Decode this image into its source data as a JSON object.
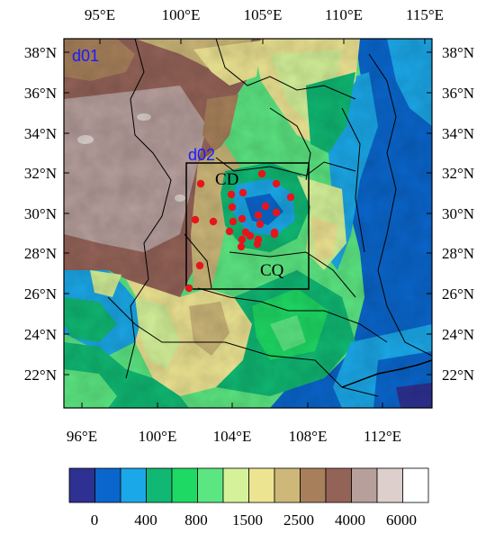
{
  "map": {
    "top_lon_labels": [
      "95°E",
      "100°E",
      "105°E",
      "110°E",
      "115°E"
    ],
    "bottom_lon_labels": [
      "96°E",
      "100°E",
      "104°E",
      "108°E",
      "112°E"
    ],
    "left_lat_labels": [
      "38°N",
      "36°N",
      "34°N",
      "32°N",
      "30°N",
      "28°N",
      "26°N",
      "24°N",
      "22°N"
    ],
    "right_lat_labels": [
      "38°N",
      "36°N",
      "34°N",
      "32°N",
      "30°N",
      "28°N",
      "26°N",
      "24°N",
      "22°N"
    ],
    "domain_outer_label": "d01",
    "domain_inner_label": "d02",
    "city_labels": [
      "CD",
      "CQ"
    ],
    "station_count": 26
  },
  "colorbar": {
    "colors": [
      "#2e3192",
      "#0a66cc",
      "#1ba8e8",
      "#10b873",
      "#1ed964",
      "#5ce682",
      "#d5f29a",
      "#ede492",
      "#cdb879",
      "#a7805b",
      "#946358",
      "#b79f9c",
      "#ddd0cc",
      "#ffffff"
    ],
    "labels": [
      "0",
      "400",
      "800",
      "1500",
      "2500",
      "4000",
      "6000"
    ]
  },
  "colors": {
    "station": "#e8141c",
    "frame": "#000000",
    "domain_label": "#1a1aff"
  }
}
